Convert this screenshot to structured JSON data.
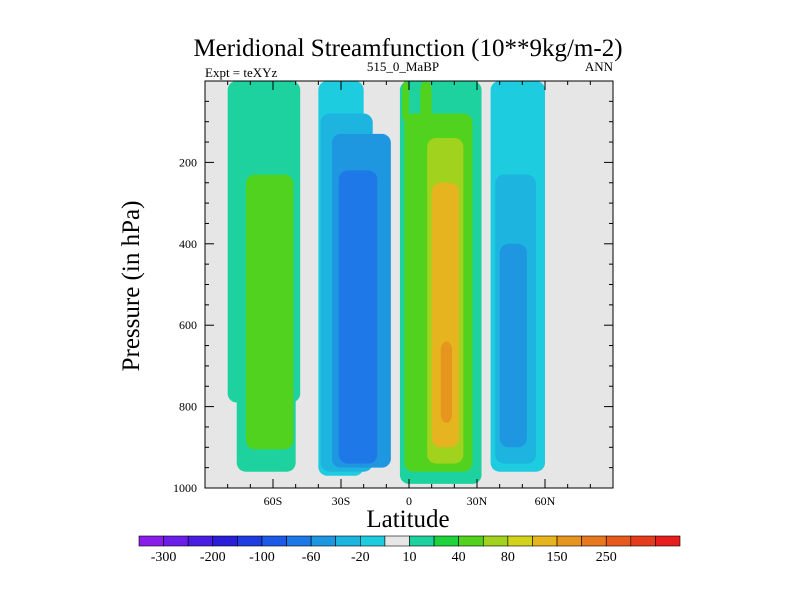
{
  "chart_data": {
    "type": "heatmap",
    "title": "Meridional Streamfunction (10**9kg/m-2)",
    "subtitle_left": "Expt = teXYz",
    "subtitle_center": "515_0_MaBP",
    "subtitle_right": "ANN",
    "xlabel": "Latitude",
    "ylabel": "Pressure (in hPa)",
    "xlim": [
      -90,
      90
    ],
    "ylim": [
      1000,
      0
    ],
    "x_ticks": [
      {
        "value": -60,
        "label": "60S"
      },
      {
        "value": -30,
        "label": "30S"
      },
      {
        "value": 0,
        "label": "0"
      },
      {
        "value": 30,
        "label": "30N"
      },
      {
        "value": 60,
        "label": "60N"
      }
    ],
    "y_ticks": [
      {
        "value": 200,
        "label": "200"
      },
      {
        "value": 400,
        "label": "400"
      },
      {
        "value": 600,
        "label": "600"
      },
      {
        "value": 800,
        "label": "800"
      },
      {
        "value": 1000,
        "label": "1000"
      }
    ],
    "missing_color": "#e6e6e6",
    "colorbar": {
      "colors": [
        "#8a1ee8",
        "#6a1ee8",
        "#4a1ee0",
        "#2a1ed8",
        "#1e3ce0",
        "#1e5ae8",
        "#1e78e8",
        "#1e96e0",
        "#1eb4e0",
        "#1ecce0",
        "#e6e6e6",
        "#1ed2a0",
        "#1ed23c",
        "#50d21e",
        "#a0d21e",
        "#d2d21e",
        "#e6b41e",
        "#e6961e",
        "#e6781e",
        "#e65a1e",
        "#e63c1e",
        "#e61e1e"
      ],
      "labels": [
        {
          "after_index": 0,
          "text": "-300"
        },
        {
          "after_index": 2,
          "text": "-200"
        },
        {
          "after_index": 4,
          "text": "-100"
        },
        {
          "after_index": 6,
          "text": "-60"
        },
        {
          "after_index": 8,
          "text": "-20"
        },
        {
          "after_index": 10,
          "text": "10"
        },
        {
          "after_index": 12,
          "text": "40"
        },
        {
          "after_index": 14,
          "text": "80"
        },
        {
          "after_index": 16,
          "text": "150"
        },
        {
          "after_index": 18,
          "text": "250"
        }
      ]
    },
    "cells": [
      {
        "lat_start": -80,
        "lat_end": -48,
        "p_start": 0,
        "p_end": 790,
        "value": 15
      },
      {
        "lat_start": -76,
        "lat_end": -50,
        "p_start": 30,
        "p_end": 960,
        "value": 15
      },
      {
        "lat_start": -72,
        "lat_end": -51,
        "p_start": 230,
        "p_end": 905,
        "value": 45
      },
      {
        "lat_start": -40,
        "lat_end": -20,
        "p_start": 0,
        "p_end": 970,
        "value": -15
      },
      {
        "lat_start": -39,
        "lat_end": -16,
        "p_start": 80,
        "p_end": 960,
        "value": -30
      },
      {
        "lat_start": -34,
        "lat_end": -8,
        "p_start": 130,
        "p_end": 950,
        "value": -45
      },
      {
        "lat_start": -31,
        "lat_end": -14,
        "p_start": 220,
        "p_end": 940,
        "value": -70
      },
      {
        "lat_start": -4,
        "lat_end": 32,
        "p_start": 0,
        "p_end": 990,
        "value": 15
      },
      {
        "lat_start": -3,
        "lat_end": 0,
        "p_start": 0,
        "p_end": 100,
        "value": 45
      },
      {
        "lat_start": 5,
        "lat_end": 10,
        "p_start": 0,
        "p_end": 100,
        "value": 45
      },
      {
        "lat_start": -2,
        "lat_end": 28,
        "p_start": 80,
        "p_end": 960,
        "value": 45
      },
      {
        "lat_start": 8,
        "lat_end": 24,
        "p_start": 140,
        "p_end": 940,
        "value": 70
      },
      {
        "lat_start": 10,
        "lat_end": 22,
        "p_start": 250,
        "p_end": 900,
        "value": 100
      },
      {
        "lat_start": 13,
        "lat_end": 20,
        "p_start": 500,
        "p_end": 870,
        "value": 140
      },
      {
        "lat_start": 14,
        "lat_end": 19,
        "p_start": 640,
        "p_end": 840,
        "value": 180
      },
      {
        "lat_start": 36,
        "lat_end": 60,
        "p_start": 0,
        "p_end": 960,
        "value": -15
      },
      {
        "lat_start": 38,
        "lat_end": 56,
        "p_start": 230,
        "p_end": 940,
        "value": -30
      },
      {
        "lat_start": 40,
        "lat_end": 52,
        "p_start": 400,
        "p_end": 900,
        "value": -45
      }
    ]
  }
}
